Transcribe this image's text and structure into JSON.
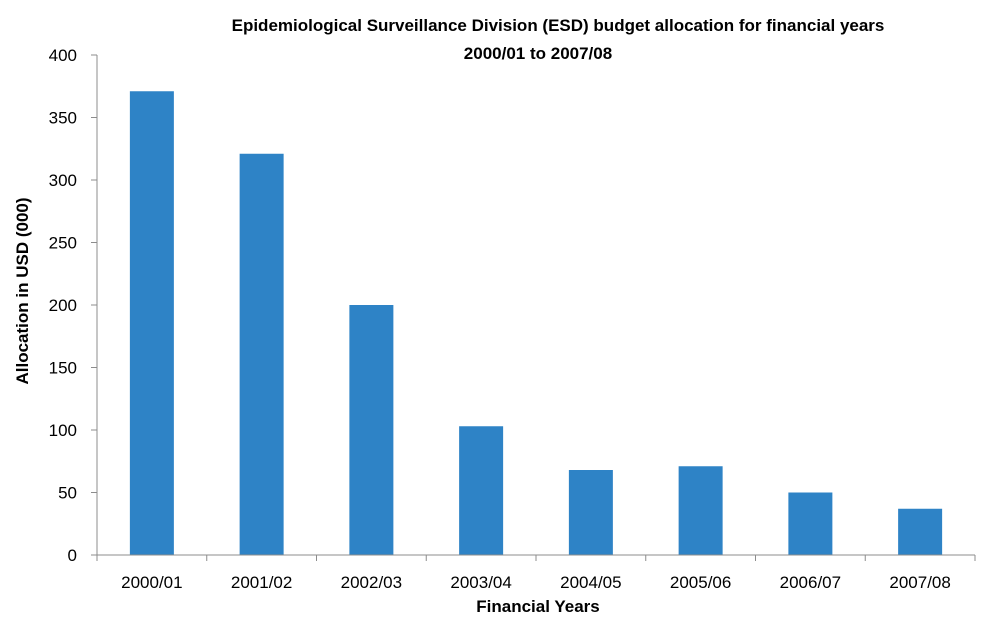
{
  "chart_data": {
    "type": "bar",
    "title": "Epidemiological Surveillance Division (ESD) budget allocation for financial years",
    "subtitle": "2000/01 to 2007/08",
    "xlabel": "Financial Years",
    "ylabel": "Allocation in USD (000)",
    "categories": [
      "2000/01",
      "2001/02",
      "2002/03",
      "2003/04",
      "2004/05",
      "2005/06",
      "2006/07",
      "2007/08"
    ],
    "values": [
      371,
      321,
      200,
      103,
      68,
      71,
      50,
      37
    ],
    "ylim": [
      0,
      400
    ],
    "yticks": [
      0,
      50,
      100,
      150,
      200,
      250,
      300,
      350,
      400
    ],
    "ytick_labels": [
      "0",
      "50",
      "100",
      "150",
      "200",
      "250",
      "300",
      "350",
      "400"
    ],
    "bar_color": "#2e83c6",
    "grid": false,
    "legend": "none"
  }
}
